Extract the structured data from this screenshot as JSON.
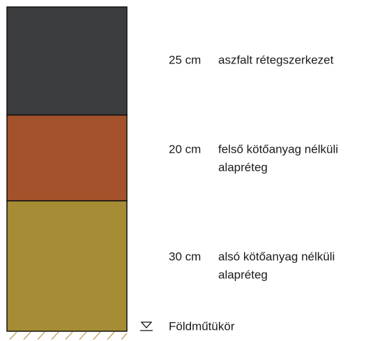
{
  "layers": [
    {
      "thickness": "25 cm",
      "lines": [
        "aszfalt rétegszerkezet"
      ]
    },
    {
      "thickness": "20 cm",
      "lines": [
        "felső kötőanyag nélküli",
        "alapréteg"
      ]
    },
    {
      "thickness": "30 cm",
      "lines": [
        "alsó kötőanyag nélküli",
        "alapréteg"
      ]
    }
  ],
  "ground": {
    "label": "Földműtükör"
  }
}
